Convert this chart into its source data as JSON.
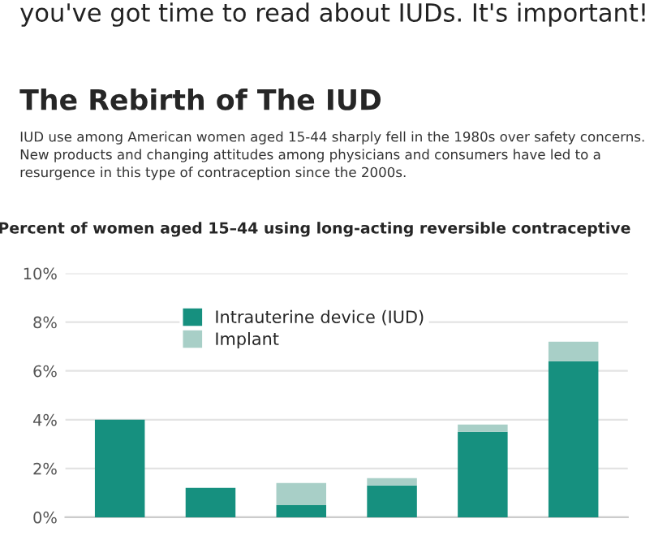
{
  "chart_data": {
    "type": "bar",
    "title": "The Rebirth of The IUD",
    "subtitle": "IUD use among American women aged 15-44 sharply fell in the 1980s over safety concerns. New products and changing attitudes among physicians and consumers have led to a resurgence in this type of contraception since the 2000s.",
    "ylabel": "Percent of women aged 15–44 using long-acting reversible contraceptive",
    "annotations": [
      "you've got time to read about IUDs. It's important!"
    ],
    "categories": [
      null,
      null,
      null,
      null,
      null,
      null
    ],
    "stacked": true,
    "series": [
      {
        "name": "Intrauterine device (IUD)",
        "color": "#16907f",
        "values": [
          4.0,
          1.2,
          0.5,
          1.3,
          3.5,
          6.4
        ]
      },
      {
        "name": "Implant",
        "color": "#a8cfc7",
        "values": [
          null,
          null,
          0.9,
          0.3,
          0.3,
          0.8
        ]
      }
    ],
    "ylim": [
      0,
      10
    ],
    "yticks": [
      {
        "value": 0,
        "label": "0%"
      },
      {
        "value": 2,
        "label": "2%"
      },
      {
        "value": 4,
        "label": "4%"
      },
      {
        "value": 6,
        "label": "6%"
      },
      {
        "value": 8,
        "label": "8%"
      },
      {
        "value": 10,
        "label": "10%"
      }
    ],
    "grid": "y",
    "legend": "top left"
  }
}
